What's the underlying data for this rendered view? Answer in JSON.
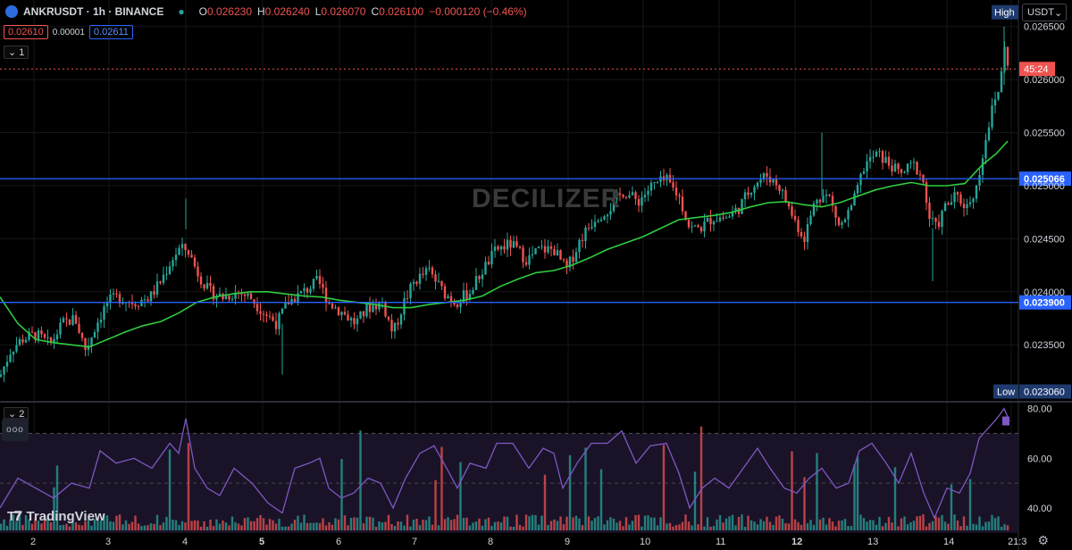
{
  "header": {
    "symbol": "ANKRUSDT · 1h · BINANCE",
    "open_label": "O",
    "open": "0.026230",
    "high_label": "H",
    "high": "0.026240",
    "low_label": "L",
    "low": "0.026070",
    "close_label": "C",
    "close": "0.026100",
    "change": "−0.000120 (−0.46%)"
  },
  "quote": {
    "sell": "0.02610",
    "spread": "0.00001",
    "buy": "0.02611"
  },
  "panes": {
    "main_tag": "1",
    "rsi_tag": "2"
  },
  "currency": "USDT",
  "watermark": "DECILIZER",
  "brand": "TradingView",
  "countdown": "45:24",
  "colors": {
    "up": "#26a69a",
    "down": "#ef5350",
    "ma": "#2ecc40",
    "rsi": "#7e57c2",
    "hline": "#2962ff"
  },
  "chart_data": {
    "type": "candlestick",
    "symbol": "ANKRUSDT",
    "interval": "1h",
    "exchange": "BINANCE",
    "y_ticks": [
      0.0265,
      0.026,
      0.0255,
      0.025,
      0.0245,
      0.024,
      0.0235
    ],
    "y_tick_labels": [
      "0.026500",
      "0.026000",
      "0.025500",
      "0.025000",
      "0.024500",
      "0.024000",
      "0.023500"
    ],
    "ylim": [
      0.02298,
      0.02675
    ],
    "x_labels": [
      "2",
      "3",
      "4",
      "5",
      "6",
      "7",
      "8",
      "9",
      "10",
      "11",
      "12",
      "13",
      "14",
      "21:3"
    ],
    "current_price": 0.0261,
    "horizontal_lines": [
      {
        "value": 0.025066,
        "label": "0.025066"
      },
      {
        "value": 0.0239,
        "label": "0.023900"
      }
    ],
    "high_marker": {
      "label": "High",
      "value": 0.0265
    },
    "low_marker": {
      "label": "Low",
      "value": 0.02306,
      "value_label": "0.023060"
    },
    "close_series": [
      {
        "x": 0,
        "y": 0.0232
      },
      {
        "x": 12,
        "y": 0.02345
      },
      {
        "x": 24,
        "y": 0.02355
      },
      {
        "x": 40,
        "y": 0.0236
      },
      {
        "x": 56,
        "y": 0.0235
      },
      {
        "x": 70,
        "y": 0.0237
      },
      {
        "x": 84,
        "y": 0.02375
      },
      {
        "x": 96,
        "y": 0.02345
      },
      {
        "x": 108,
        "y": 0.0237
      },
      {
        "x": 120,
        "y": 0.0239
      },
      {
        "x": 132,
        "y": 0.02395
      },
      {
        "x": 150,
        "y": 0.0239
      },
      {
        "x": 168,
        "y": 0.02395
      },
      {
        "x": 180,
        "y": 0.0241
      },
      {
        "x": 192,
        "y": 0.0243
      },
      {
        "x": 200,
        "y": 0.0244
      },
      {
        "x": 210,
        "y": 0.0244
      },
      {
        "x": 220,
        "y": 0.0242
      },
      {
        "x": 234,
        "y": 0.024
      },
      {
        "x": 250,
        "y": 0.02395
      },
      {
        "x": 266,
        "y": 0.024
      },
      {
        "x": 280,
        "y": 0.02395
      },
      {
        "x": 296,
        "y": 0.0238
      },
      {
        "x": 310,
        "y": 0.0237
      },
      {
        "x": 322,
        "y": 0.0239
      },
      {
        "x": 340,
        "y": 0.024
      },
      {
        "x": 356,
        "y": 0.0241
      },
      {
        "x": 368,
        "y": 0.0239
      },
      {
        "x": 384,
        "y": 0.0238
      },
      {
        "x": 398,
        "y": 0.0237
      },
      {
        "x": 412,
        "y": 0.02385
      },
      {
        "x": 428,
        "y": 0.0239
      },
      {
        "x": 440,
        "y": 0.0236
      },
      {
        "x": 452,
        "y": 0.0239
      },
      {
        "x": 464,
        "y": 0.0241
      },
      {
        "x": 480,
        "y": 0.0242
      },
      {
        "x": 496,
        "y": 0.024
      },
      {
        "x": 510,
        "y": 0.0239
      },
      {
        "x": 526,
        "y": 0.024
      },
      {
        "x": 540,
        "y": 0.0242
      },
      {
        "x": 556,
        "y": 0.0244
      },
      {
        "x": 572,
        "y": 0.02445
      },
      {
        "x": 590,
        "y": 0.0243
      },
      {
        "x": 604,
        "y": 0.0244
      },
      {
        "x": 620,
        "y": 0.0244
      },
      {
        "x": 634,
        "y": 0.0242
      },
      {
        "x": 650,
        "y": 0.0245
      },
      {
        "x": 666,
        "y": 0.0247
      },
      {
        "x": 684,
        "y": 0.0248
      },
      {
        "x": 698,
        "y": 0.02495
      },
      {
        "x": 714,
        "y": 0.02485
      },
      {
        "x": 730,
        "y": 0.025
      },
      {
        "x": 746,
        "y": 0.02505
      },
      {
        "x": 760,
        "y": 0.0249
      },
      {
        "x": 772,
        "y": 0.0246
      },
      {
        "x": 784,
        "y": 0.0246
      },
      {
        "x": 798,
        "y": 0.0247
      },
      {
        "x": 814,
        "y": 0.0247
      },
      {
        "x": 828,
        "y": 0.0248
      },
      {
        "x": 842,
        "y": 0.025
      },
      {
        "x": 858,
        "y": 0.0251
      },
      {
        "x": 872,
        "y": 0.025
      },
      {
        "x": 888,
        "y": 0.0247
      },
      {
        "x": 900,
        "y": 0.0245
      },
      {
        "x": 914,
        "y": 0.0249
      },
      {
        "x": 928,
        "y": 0.0249
      },
      {
        "x": 940,
        "y": 0.0246
      },
      {
        "x": 954,
        "y": 0.0248
      },
      {
        "x": 968,
        "y": 0.0252
      },
      {
        "x": 982,
        "y": 0.0253
      },
      {
        "x": 996,
        "y": 0.0252
      },
      {
        "x": 1008,
        "y": 0.0251
      },
      {
        "x": 1022,
        "y": 0.0252
      },
      {
        "x": 1032,
        "y": 0.0251
      },
      {
        "x": 1040,
        "y": 0.0247
      },
      {
        "x": 1048,
        "y": 0.0246
      },
      {
        "x": 1058,
        "y": 0.0248
      },
      {
        "x": 1070,
        "y": 0.0249
      },
      {
        "x": 1082,
        "y": 0.0248
      },
      {
        "x": 1094,
        "y": 0.025
      },
      {
        "x": 1102,
        "y": 0.0254
      },
      {
        "x": 1110,
        "y": 0.0257
      },
      {
        "x": 1118,
        "y": 0.0259
      },
      {
        "x": 1124,
        "y": 0.0263
      },
      {
        "x": 1130,
        "y": 0.0261
      }
    ],
    "ma_series": [
      {
        "x": 0,
        "y": 0.02395
      },
      {
        "x": 20,
        "y": 0.0237
      },
      {
        "x": 40,
        "y": 0.02355
      },
      {
        "x": 60,
        "y": 0.02352
      },
      {
        "x": 80,
        "y": 0.0235
      },
      {
        "x": 100,
        "y": 0.02348
      },
      {
        "x": 120,
        "y": 0.02355
      },
      {
        "x": 140,
        "y": 0.02362
      },
      {
        "x": 160,
        "y": 0.02368
      },
      {
        "x": 180,
        "y": 0.02372
      },
      {
        "x": 200,
        "y": 0.0238
      },
      {
        "x": 220,
        "y": 0.0239
      },
      {
        "x": 240,
        "y": 0.02395
      },
      {
        "x": 260,
        "y": 0.02398
      },
      {
        "x": 280,
        "y": 0.024
      },
      {
        "x": 300,
        "y": 0.024
      },
      {
        "x": 320,
        "y": 0.02398
      },
      {
        "x": 340,
        "y": 0.02396
      },
      {
        "x": 360,
        "y": 0.02395
      },
      {
        "x": 380,
        "y": 0.02392
      },
      {
        "x": 400,
        "y": 0.0239
      },
      {
        "x": 420,
        "y": 0.02388
      },
      {
        "x": 440,
        "y": 0.02385
      },
      {
        "x": 460,
        "y": 0.02385
      },
      {
        "x": 480,
        "y": 0.02388
      },
      {
        "x": 500,
        "y": 0.0239
      },
      {
        "x": 520,
        "y": 0.02392
      },
      {
        "x": 540,
        "y": 0.02396
      },
      {
        "x": 560,
        "y": 0.02405
      },
      {
        "x": 580,
        "y": 0.02412
      },
      {
        "x": 600,
        "y": 0.02418
      },
      {
        "x": 620,
        "y": 0.0242
      },
      {
        "x": 640,
        "y": 0.02425
      },
      {
        "x": 660,
        "y": 0.02432
      },
      {
        "x": 680,
        "y": 0.0244
      },
      {
        "x": 700,
        "y": 0.02446
      },
      {
        "x": 720,
        "y": 0.02452
      },
      {
        "x": 740,
        "y": 0.0246
      },
      {
        "x": 760,
        "y": 0.02468
      },
      {
        "x": 780,
        "y": 0.0247
      },
      {
        "x": 800,
        "y": 0.02472
      },
      {
        "x": 820,
        "y": 0.02475
      },
      {
        "x": 840,
        "y": 0.0248
      },
      {
        "x": 860,
        "y": 0.02484
      },
      {
        "x": 880,
        "y": 0.02485
      },
      {
        "x": 900,
        "y": 0.02482
      },
      {
        "x": 920,
        "y": 0.0248
      },
      {
        "x": 940,
        "y": 0.02484
      },
      {
        "x": 960,
        "y": 0.0249
      },
      {
        "x": 980,
        "y": 0.02496
      },
      {
        "x": 1000,
        "y": 0.025
      },
      {
        "x": 1020,
        "y": 0.02503
      },
      {
        "x": 1040,
        "y": 0.025
      },
      {
        "x": 1060,
        "y": 0.025
      },
      {
        "x": 1080,
        "y": 0.02502
      },
      {
        "x": 1100,
        "y": 0.0252
      },
      {
        "x": 1115,
        "y": 0.0253
      },
      {
        "x": 1128,
        "y": 0.02542
      }
    ],
    "rsi": {
      "ticks": [
        80,
        60,
        40
      ],
      "tick_labels": [
        "80.00",
        "60.00",
        "40.00"
      ],
      "ylim": [
        31,
        82
      ],
      "band_upper": 70,
      "band_mid": 50,
      "series": [
        {
          "x": 0,
          "y": 40
        },
        {
          "x": 20,
          "y": 52
        },
        {
          "x": 40,
          "y": 48
        },
        {
          "x": 60,
          "y": 44
        },
        {
          "x": 80,
          "y": 50
        },
        {
          "x": 100,
          "y": 48
        },
        {
          "x": 112,
          "y": 63
        },
        {
          "x": 130,
          "y": 58
        },
        {
          "x": 150,
          "y": 60
        },
        {
          "x": 170,
          "y": 56
        },
        {
          "x": 190,
          "y": 66
        },
        {
          "x": 200,
          "y": 62
        },
        {
          "x": 208,
          "y": 76
        },
        {
          "x": 218,
          "y": 56
        },
        {
          "x": 232,
          "y": 48
        },
        {
          "x": 246,
          "y": 45
        },
        {
          "x": 262,
          "y": 56
        },
        {
          "x": 282,
          "y": 50
        },
        {
          "x": 300,
          "y": 42
        },
        {
          "x": 316,
          "y": 38
        },
        {
          "x": 330,
          "y": 56
        },
        {
          "x": 346,
          "y": 58
        },
        {
          "x": 358,
          "y": 60
        },
        {
          "x": 368,
          "y": 48
        },
        {
          "x": 382,
          "y": 44
        },
        {
          "x": 396,
          "y": 46
        },
        {
          "x": 412,
          "y": 52
        },
        {
          "x": 426,
          "y": 50
        },
        {
          "x": 440,
          "y": 40
        },
        {
          "x": 454,
          "y": 52
        },
        {
          "x": 470,
          "y": 62
        },
        {
          "x": 486,
          "y": 65
        },
        {
          "x": 500,
          "y": 56
        },
        {
          "x": 512,
          "y": 48
        },
        {
          "x": 526,
          "y": 58
        },
        {
          "x": 544,
          "y": 56
        },
        {
          "x": 556,
          "y": 66
        },
        {
          "x": 574,
          "y": 66
        },
        {
          "x": 592,
          "y": 56
        },
        {
          "x": 608,
          "y": 64
        },
        {
          "x": 620,
          "y": 62
        },
        {
          "x": 630,
          "y": 48
        },
        {
          "x": 646,
          "y": 58
        },
        {
          "x": 662,
          "y": 66
        },
        {
          "x": 680,
          "y": 66
        },
        {
          "x": 696,
          "y": 71
        },
        {
          "x": 712,
          "y": 58
        },
        {
          "x": 728,
          "y": 65
        },
        {
          "x": 746,
          "y": 66
        },
        {
          "x": 760,
          "y": 54
        },
        {
          "x": 772,
          "y": 40
        },
        {
          "x": 786,
          "y": 48
        },
        {
          "x": 800,
          "y": 52
        },
        {
          "x": 816,
          "y": 48
        },
        {
          "x": 832,
          "y": 56
        },
        {
          "x": 848,
          "y": 64
        },
        {
          "x": 862,
          "y": 56
        },
        {
          "x": 878,
          "y": 48
        },
        {
          "x": 892,
          "y": 46
        },
        {
          "x": 906,
          "y": 52
        },
        {
          "x": 920,
          "y": 56
        },
        {
          "x": 936,
          "y": 48
        },
        {
          "x": 950,
          "y": 50
        },
        {
          "x": 962,
          "y": 63
        },
        {
          "x": 976,
          "y": 66
        },
        {
          "x": 992,
          "y": 58
        },
        {
          "x": 1006,
          "y": 50
        },
        {
          "x": 1020,
          "y": 62
        },
        {
          "x": 1034,
          "y": 46
        },
        {
          "x": 1046,
          "y": 36
        },
        {
          "x": 1060,
          "y": 48
        },
        {
          "x": 1074,
          "y": 46
        },
        {
          "x": 1086,
          "y": 54
        },
        {
          "x": 1096,
          "y": 68
        },
        {
          "x": 1106,
          "y": 72
        },
        {
          "x": 1116,
          "y": 76
        },
        {
          "x": 1124,
          "y": 80
        },
        {
          "x": 1130,
          "y": 75
        }
      ]
    }
  }
}
